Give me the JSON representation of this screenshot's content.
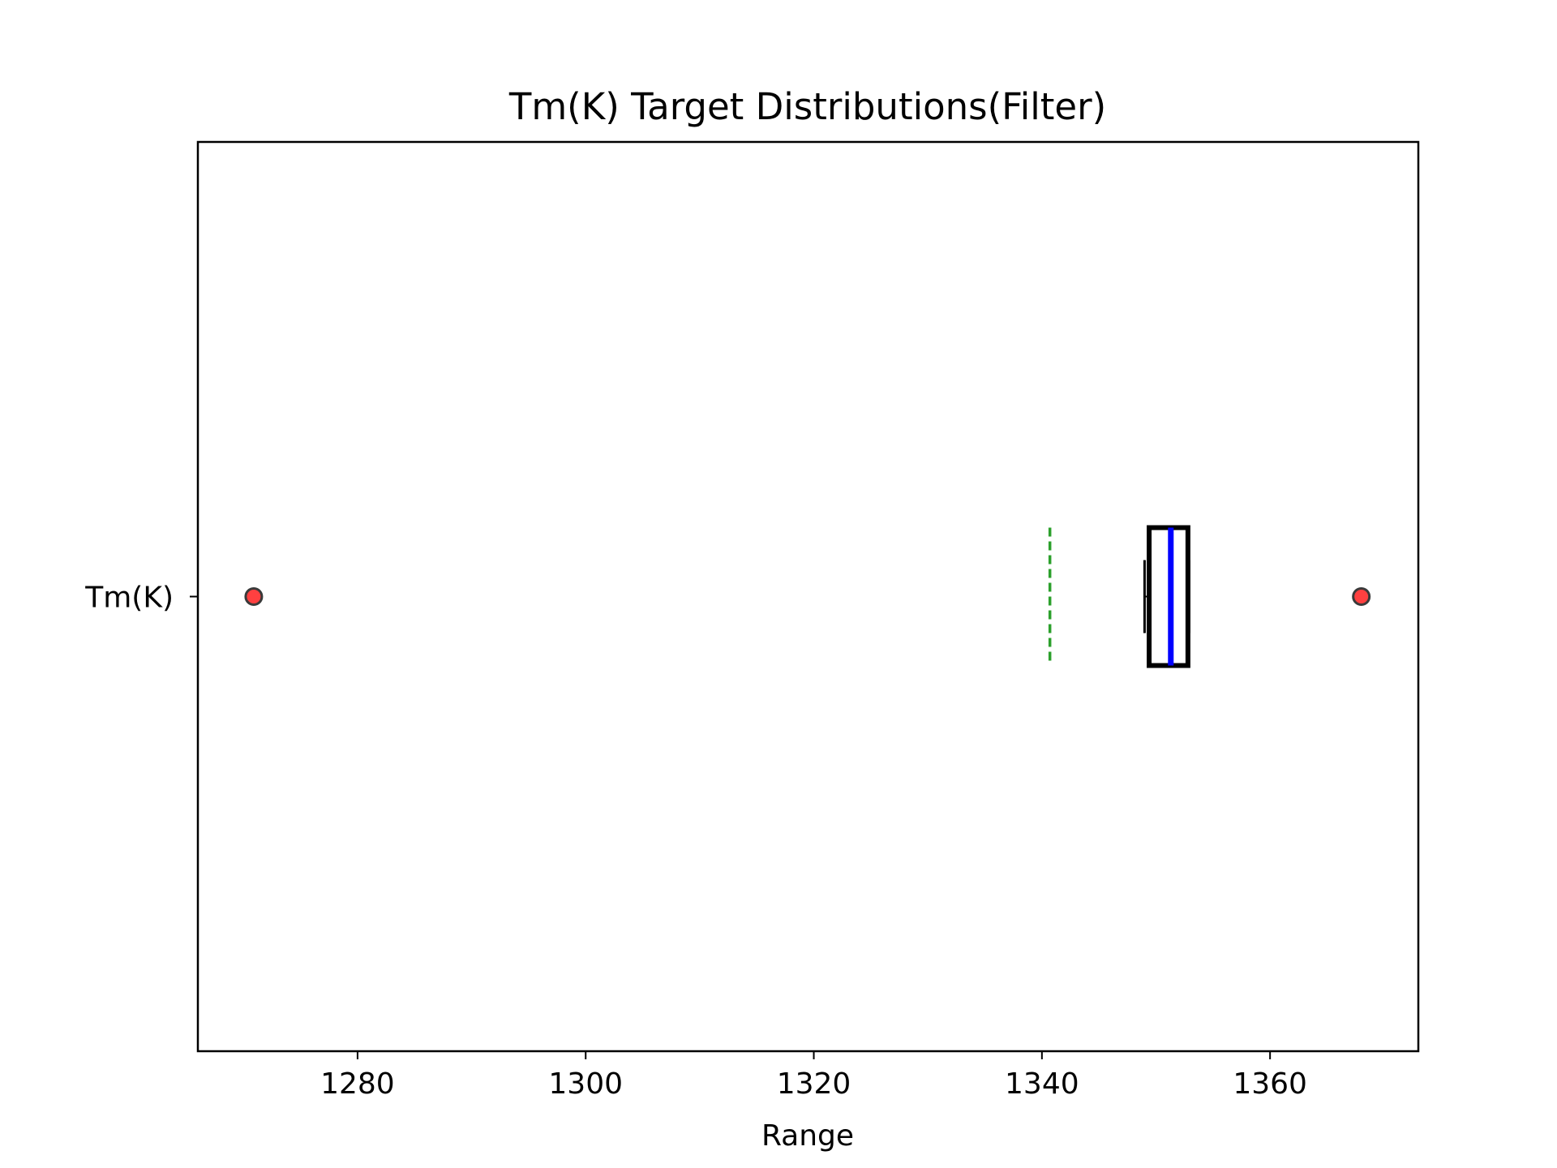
{
  "chart_data": {
    "type": "box",
    "orientation": "horizontal",
    "title": "Tm(K) Target Distributions(Filter)",
    "xlabel": "Range",
    "ylabel": "",
    "categories": [
      "Tm(K)"
    ],
    "xlim": [
      1266,
      1373
    ],
    "xticks": [
      1280,
      1300,
      1320,
      1340,
      1360
    ],
    "xtick_labels": [
      "1280",
      "1300",
      "1320",
      "1340",
      "1360"
    ],
    "grid": false,
    "series": [
      {
        "q1": 1349.4,
        "median": 1351.3,
        "q3": 1352.8,
        "whisker_low": 1349.0,
        "whisker_high": 1352.9,
        "mean": 1340.7,
        "outliers": [
          1270.9,
          1368.0
        ]
      }
    ],
    "colors": {
      "box": "#000000",
      "median": "#0000ff",
      "mean": "#2ca02c",
      "outlier_fill": "#ff4040",
      "outlier_edge": "#3a3a3a"
    }
  }
}
